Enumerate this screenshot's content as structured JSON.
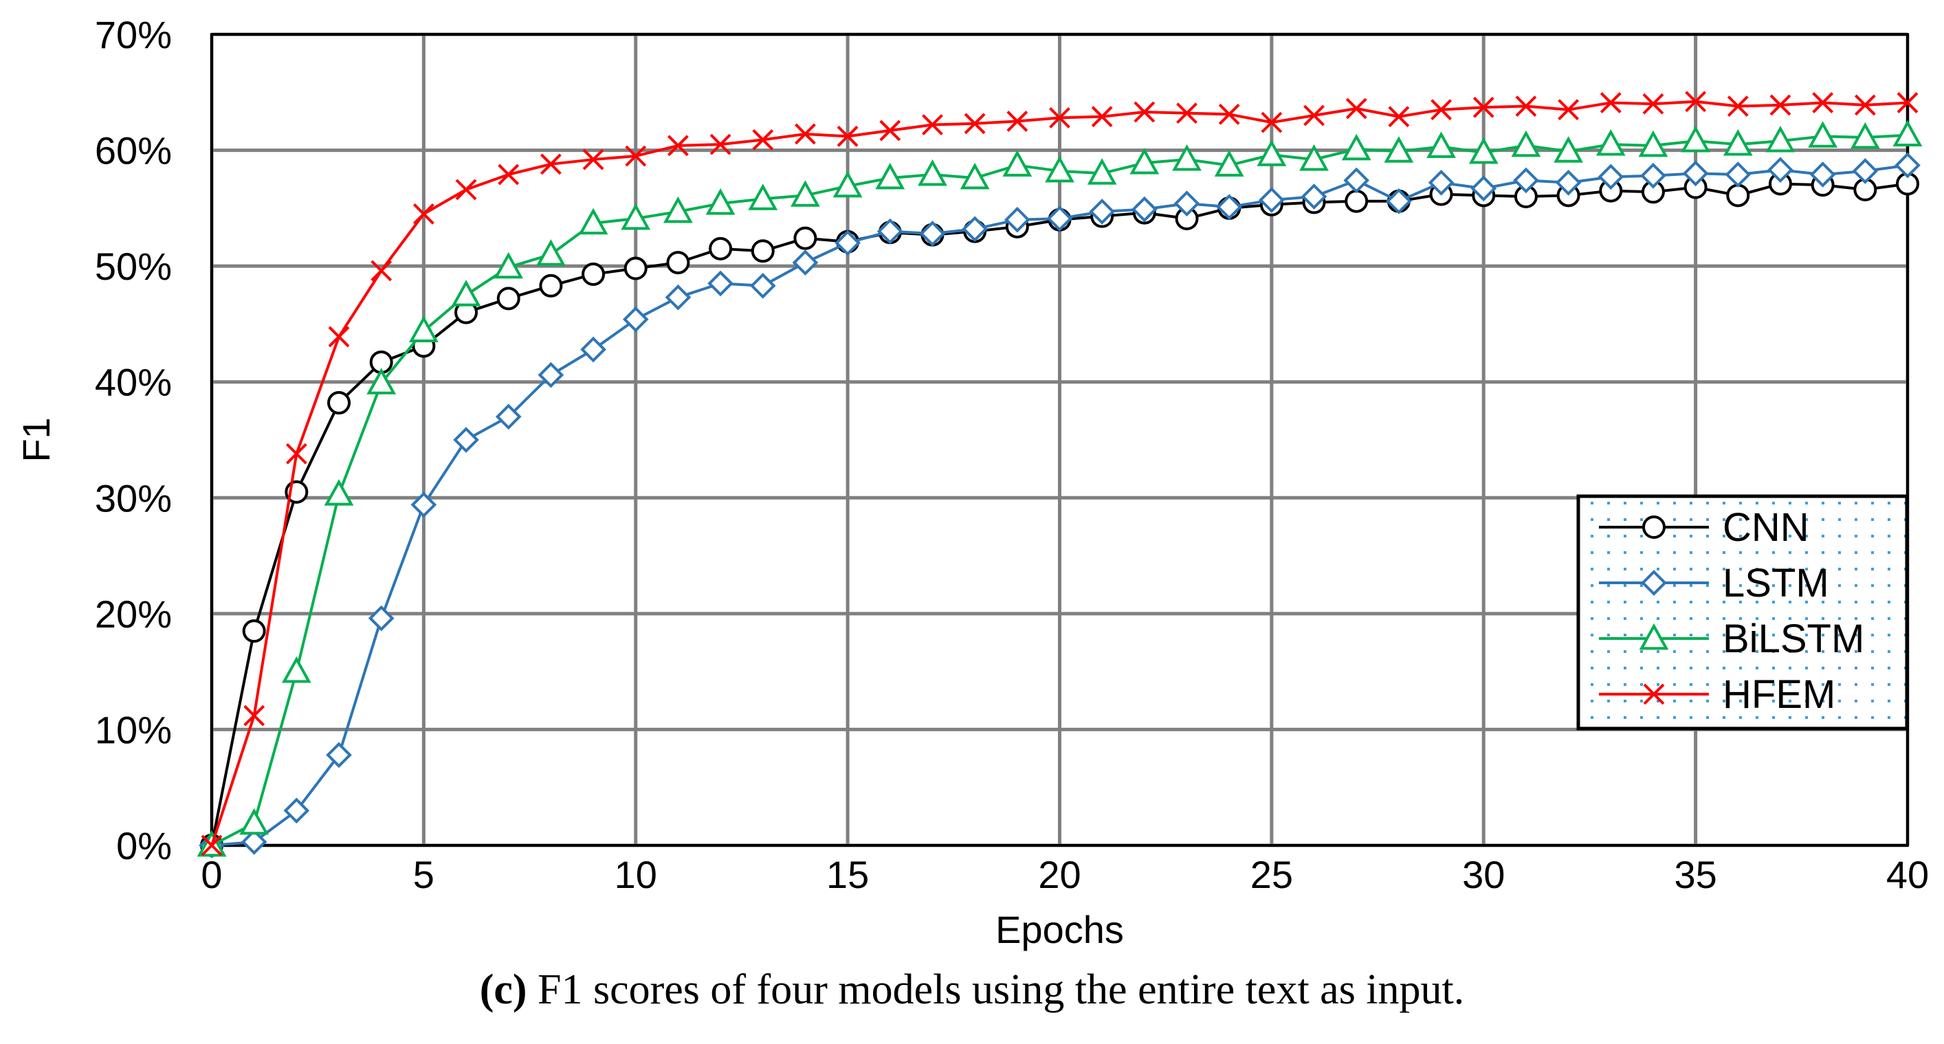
{
  "chart_data": {
    "type": "line",
    "title": "",
    "xlabel": "Epochs",
    "ylabel": "F1",
    "xlim": [
      0,
      40
    ],
    "ylim": [
      0,
      70
    ],
    "x_ticks": [
      "0",
      "5",
      "10",
      "15",
      "20",
      "25",
      "30",
      "35",
      "40"
    ],
    "y_ticks": [
      "0%",
      "10%",
      "20%",
      "30%",
      "40%",
      "50%",
      "60%",
      "70%"
    ],
    "grid": true,
    "legend_position": "bottom-right",
    "x": [
      0,
      1,
      2,
      3,
      4,
      5,
      6,
      7,
      8,
      9,
      10,
      11,
      12,
      13,
      14,
      15,
      16,
      17,
      18,
      19,
      20,
      21,
      22,
      23,
      24,
      25,
      26,
      27,
      28,
      29,
      30,
      31,
      32,
      33,
      34,
      35,
      36,
      37,
      38,
      39,
      40
    ],
    "series": [
      {
        "name": "CNN",
        "color": "#000000",
        "marker": "circle",
        "values": [
          0,
          18.5,
          30.5,
          38.2,
          41.7,
          43.1,
          46,
          47.2,
          48.3,
          49.3,
          49.8,
          50.3,
          51.5,
          51.3,
          52.4,
          52.1,
          52.9,
          52.7,
          53,
          53.4,
          54,
          54.3,
          54.6,
          54.1,
          55,
          55.3,
          55.5,
          55.6,
          55.6,
          56.2,
          56.1,
          56,
          56.1,
          56.5,
          56.4,
          56.8,
          56.1,
          57.1,
          57,
          56.6,
          57.1
        ]
      },
      {
        "name": "LSTM",
        "color": "#2E75B6",
        "marker": "diamond",
        "values": [
          0,
          0.3,
          3,
          7.8,
          19.6,
          29.4,
          35,
          37,
          40.6,
          42.8,
          45.4,
          47.3,
          48.5,
          48.3,
          50.3,
          52,
          53,
          52.8,
          53.2,
          54,
          54.1,
          54.7,
          54.9,
          55.4,
          55.1,
          55.7,
          56,
          57.4,
          55.6,
          57.2,
          56.7,
          57.4,
          57.2,
          57.7,
          57.8,
          58,
          57.9,
          58.3,
          57.9,
          58.2,
          58.7
        ]
      },
      {
        "name": "BiLSTM",
        "color": "#00B050",
        "marker": "triangle",
        "values": [
          0,
          1.9,
          15,
          30.3,
          39.9,
          44.4,
          47.5,
          49.9,
          51,
          53.7,
          54.1,
          54.7,
          55.4,
          55.8,
          56.1,
          56.9,
          57.6,
          57.9,
          57.6,
          58.7,
          58.2,
          58,
          58.9,
          59.2,
          58.7,
          59.6,
          59.2,
          60.1,
          59.9,
          60.3,
          59.8,
          60.4,
          59.9,
          60.5,
          60.4,
          60.8,
          60.5,
          60.8,
          61.2,
          61.1,
          61.3
        ]
      },
      {
        "name": "HFEM",
        "color": "#FF0000",
        "marker": "x",
        "values": [
          0,
          11.2,
          33.8,
          43.9,
          49.6,
          54.5,
          56.6,
          57.9,
          58.8,
          59.2,
          59.5,
          60.4,
          60.5,
          60.9,
          61.4,
          61.2,
          61.7,
          62.2,
          62.3,
          62.5,
          62.8,
          62.9,
          63.3,
          63.2,
          63.1,
          62.4,
          63,
          63.6,
          62.9,
          63.5,
          63.7,
          63.8,
          63.5,
          64.1,
          64,
          64.2,
          63.8,
          63.9,
          64.1,
          63.9,
          64.1
        ]
      }
    ]
  },
  "caption": {
    "label": "(c)",
    "text": " F1 scores of four models using the entire text as input."
  }
}
